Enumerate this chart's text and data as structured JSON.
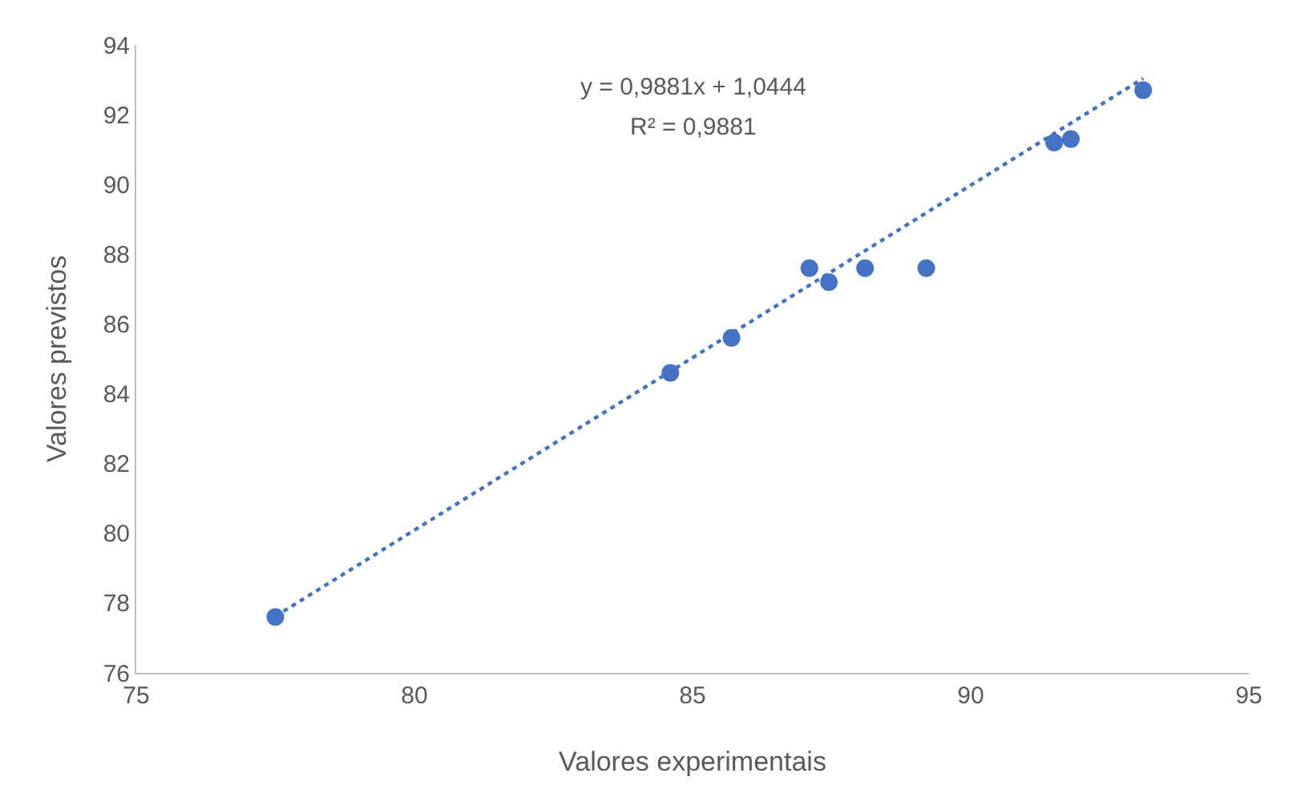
{
  "chart_data": {
    "type": "scatter",
    "xlabel": "Valores experimentais",
    "ylabel": "Valores previstos",
    "xlim": [
      75,
      95
    ],
    "xticks": [
      75,
      80,
      85,
      90,
      95
    ],
    "ylim": [
      76,
      94
    ],
    "yticks": [
      76,
      78,
      80,
      82,
      84,
      86,
      88,
      90,
      92,
      94
    ],
    "grid": false,
    "marker": "circle",
    "annotations": [
      "y = 0,9881x + 1,0444",
      "R² = 0,9881"
    ],
    "series": [
      {
        "color": "#4472c4",
        "x": [
          77.5,
          84.6,
          85.7,
          87.1,
          87.45,
          88.1,
          89.2,
          91.5,
          91.8,
          93.1
        ],
        "values": [
          77.6,
          84.6,
          85.6,
          87.6,
          87.2,
          87.6,
          87.6,
          91.2,
          91.3,
          92.7
        ]
      },
      {
        "type": "line",
        "color": "#4472c4",
        "line_style": "dotted",
        "marker": "none",
        "x": [
          77.5,
          93.1
        ],
        "values": [
          77.62,
          93.04
        ]
      }
    ]
  }
}
